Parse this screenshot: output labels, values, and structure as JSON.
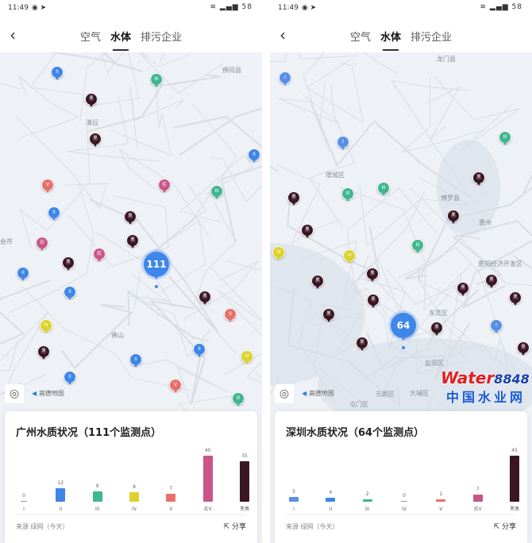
{
  "grades": [
    {
      "label": "I",
      "marker": "I",
      "color": "#5a8fe6"
    },
    {
      "label": "II",
      "marker": "II",
      "color": "#3e86e8"
    },
    {
      "label": "III",
      "marker": "III",
      "color": "#3fb68e"
    },
    {
      "label": "IV",
      "marker": "IV",
      "color": "#ddd22a"
    },
    {
      "label": "V",
      "marker": "V",
      "color": "#e8706a"
    },
    {
      "label": "劣V",
      "marker": "劣",
      "color": "#c9558a"
    },
    {
      "label": "黑臭",
      "marker": "黑",
      "color": "#3a1624"
    }
  ],
  "screens": [
    {
      "status": {
        "time": "11:49",
        "icons": "◉ ➤",
        "right": "≋ ▂▄▆ 58"
      },
      "nav": {
        "back": "‹",
        "tabs": [
          "空气",
          "水体",
          "排污企业"
        ],
        "active": 1
      },
      "map": {
        "cluster": "111",
        "labels": [
          "佛冈县",
          "清远",
          "会市",
          "佛山"
        ],
        "logo": "高德地图"
      },
      "card": {
        "title": "广州水质状况（111个监测点）",
        "values": [
          0,
          12,
          9,
          8,
          7,
          40,
          35
        ],
        "source": "来源 绿网（今天）",
        "share": "分享"
      }
    },
    {
      "status": {
        "time": "11:49",
        "icons": "◉ ➤",
        "right": "≋ ▂▄▆ 58"
      },
      "nav": {
        "back": "‹",
        "tabs": [
          "空气",
          "水体",
          "排污企业"
        ],
        "active": 1
      },
      "map": {
        "cluster": "64",
        "labels": [
          "龙门县",
          "增城区",
          "博罗县",
          "惠州",
          "惠阳经济开发区",
          "东莞区",
          "盐田区",
          "元朗区",
          "大埔区",
          "屯门区"
        ],
        "logo": "高德地图"
      },
      "card": {
        "title": "深圳水质状况（64个监测点）",
        "values": [
          5,
          4,
          2,
          0,
          1,
          7,
          45
        ],
        "source": "来源 绿网（今天）",
        "share": "分享"
      }
    }
  ],
  "watermark": {
    "brand": "Water",
    "num": "8848",
    "domain": ".com",
    "cn": "中国水业网"
  }
}
